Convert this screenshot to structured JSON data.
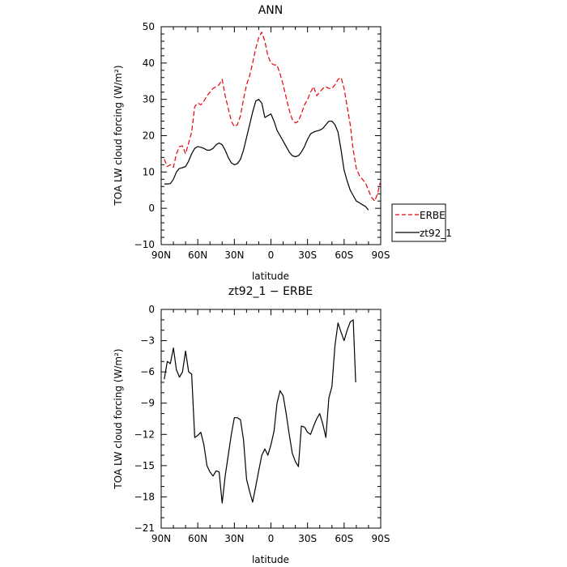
{
  "chart_data": [
    {
      "type": "line",
      "title": "ANN",
      "xlabel": "latitude",
      "ylabel": "TOA LW cloud forcing (W/m²)",
      "ylim": [
        -10,
        50
      ],
      "xlim": [
        90,
        -90
      ],
      "y_ticks": [
        -10,
        0,
        10,
        20,
        30,
        40,
        50
      ],
      "x_ticks": [
        90,
        60,
        30,
        0,
        -30,
        -60,
        -90
      ],
      "x_tick_labels": [
        "90N",
        "60N",
        "30N",
        "0",
        "30S",
        "60S",
        "90S"
      ],
      "legend_position": "right",
      "series": [
        {
          "name": "ERBE",
          "color": "#e8000b",
          "dash": "dashed",
          "points": [
            [
              87.5,
              13.5
            ],
            [
              85,
              11.5
            ],
            [
              82.5,
              12.0
            ],
            [
              80,
              11.3
            ],
            [
              77.5,
              15.0
            ],
            [
              75,
              17.0
            ],
            [
              72.5,
              17.2
            ],
            [
              70,
              15.0
            ],
            [
              67.5,
              18.0
            ],
            [
              65,
              21.0
            ],
            [
              62.5,
              28.0
            ],
            [
              60,
              29.0
            ],
            [
              57.5,
              28.5
            ],
            [
              55,
              29.5
            ],
            [
              52.5,
              31.0
            ],
            [
              50,
              32.0
            ],
            [
              47.5,
              33.0
            ],
            [
              45,
              33.5
            ],
            [
              42.5,
              34.0
            ],
            [
              40,
              35.5
            ],
            [
              37.5,
              31.0
            ],
            [
              35,
              27.5
            ],
            [
              32.5,
              24.0
            ],
            [
              30,
              22.5
            ],
            [
              27.5,
              23.0
            ],
            [
              25,
              25.5
            ],
            [
              22.5,
              30.0
            ],
            [
              20,
              34.0
            ],
            [
              17.5,
              36.5
            ],
            [
              15,
              40.0
            ],
            [
              12.5,
              44.0
            ],
            [
              10,
              47.0
            ],
            [
              7.5,
              48.5
            ],
            [
              5,
              46.0
            ],
            [
              2.5,
              42.0
            ],
            [
              0,
              40.0
            ],
            [
              -2.5,
              39.5
            ],
            [
              -5,
              39.5
            ],
            [
              -7.5,
              37.0
            ],
            [
              -10,
              34.0
            ],
            [
              -12.5,
              30.5
            ],
            [
              -15,
              27.0
            ],
            [
              -17.5,
              24.5
            ],
            [
              -20,
              23.5
            ],
            [
              -22.5,
              24.0
            ],
            [
              -25,
              26.0
            ],
            [
              -27.5,
              28.5
            ],
            [
              -30,
              30.0
            ],
            [
              -32.5,
              32.0
            ],
            [
              -35,
              33.5
            ],
            [
              -37.5,
              31.0
            ],
            [
              -40,
              32.0
            ],
            [
              -42.5,
              33.0
            ],
            [
              -45,
              33.5
            ],
            [
              -47.5,
              33.0
            ],
            [
              -50,
              33.0
            ],
            [
              -52.5,
              34.0
            ],
            [
              -55,
              35.5
            ],
            [
              -57.5,
              36.0
            ],
            [
              -60,
              33.0
            ],
            [
              -62.5,
              28.0
            ],
            [
              -65,
              23.0
            ],
            [
              -67.5,
              16.0
            ],
            [
              -70,
              11.0
            ],
            [
              -72.5,
              9.0
            ],
            [
              -75,
              8.0
            ],
            [
              -77.5,
              7.0
            ],
            [
              -80,
              5.0
            ],
            [
              -82.5,
              3.0
            ],
            [
              -85,
              2.0
            ],
            [
              -87.5,
              4.0
            ],
            [
              -89.5,
              7.0
            ]
          ]
        },
        {
          "name": "zt92_1",
          "color": "#000000",
          "dash": "solid",
          "points": [
            [
              87.5,
              6.7
            ],
            [
              85,
              6.7
            ],
            [
              82.5,
              6.8
            ],
            [
              80,
              8.0
            ],
            [
              77.5,
              10.0
            ],
            [
              75,
              11.0
            ],
            [
              72.5,
              11.2
            ],
            [
              70,
              11.5
            ],
            [
              67.5,
              13.0
            ],
            [
              65,
              15.0
            ],
            [
              62.5,
              16.5
            ],
            [
              60,
              17.0
            ],
            [
              57.5,
              16.8
            ],
            [
              55,
              16.5
            ],
            [
              52.5,
              16.0
            ],
            [
              50,
              16.0
            ],
            [
              47.5,
              16.5
            ],
            [
              45,
              17.5
            ],
            [
              42.5,
              18.0
            ],
            [
              40,
              17.5
            ],
            [
              37.5,
              16.0
            ],
            [
              35,
              14.0
            ],
            [
              32.5,
              12.5
            ],
            [
              30,
              12.0
            ],
            [
              27.5,
              12.3
            ],
            [
              25,
              13.5
            ],
            [
              22.5,
              16.0
            ],
            [
              20,
              19.5
            ],
            [
              17.5,
              23.0
            ],
            [
              15,
              26.5
            ],
            [
              12.5,
              29.5
            ],
            [
              10,
              30.0
            ],
            [
              7.5,
              29.0
            ],
            [
              5,
              25.0
            ],
            [
              2.5,
              25.5
            ],
            [
              0,
              26.0
            ],
            [
              -2.5,
              24.0
            ],
            [
              -5,
              21.5
            ],
            [
              -7.5,
              20.0
            ],
            [
              -10,
              18.5
            ],
            [
              -12.5,
              17.0
            ],
            [
              -15,
              15.5
            ],
            [
              -17.5,
              14.5
            ],
            [
              -20,
              14.2
            ],
            [
              -22.5,
              14.5
            ],
            [
              -25,
              15.5
            ],
            [
              -27.5,
              17.0
            ],
            [
              -30,
              19.0
            ],
            [
              -32.5,
              20.5
            ],
            [
              -35,
              21.0
            ],
            [
              -37.5,
              21.3
            ],
            [
              -40,
              21.5
            ],
            [
              -42.5,
              22.0
            ],
            [
              -45,
              23.0
            ],
            [
              -47.5,
              24.0
            ],
            [
              -50,
              24.0
            ],
            [
              -52.5,
              23.0
            ],
            [
              -55,
              21.0
            ],
            [
              -57.5,
              16.0
            ],
            [
              -60,
              10.5
            ],
            [
              -62.5,
              7.5
            ],
            [
              -65,
              5.0
            ],
            [
              -67.5,
              3.5
            ],
            [
              -70,
              2.0
            ],
            [
              -72.5,
              1.5
            ],
            [
              -75,
              1.0
            ],
            [
              -77.5,
              0.5
            ],
            [
              -80,
              -0.5
            ]
          ]
        }
      ]
    },
    {
      "type": "line",
      "title": "zt92_1 − ERBE",
      "xlabel": "latitude",
      "ylabel": "TOA LW cloud forcing (W/m²)",
      "ylim": [
        -21,
        0
      ],
      "xlim": [
        90,
        -90
      ],
      "y_ticks": [
        -21,
        -18,
        -15,
        -12,
        -9,
        -6,
        -3,
        0
      ],
      "x_ticks": [
        90,
        60,
        30,
        0,
        -30,
        -60,
        -90
      ],
      "x_tick_labels": [
        "90N",
        "60N",
        "30N",
        "0",
        "30S",
        "60S",
        "90S"
      ],
      "series": [
        {
          "name": "",
          "color": "#000000",
          "dash": "solid",
          "points": [
            [
              87.5,
              -6.7
            ],
            [
              85,
              -5.0
            ],
            [
              82.5,
              -5.2
            ],
            [
              80,
              -3.7
            ],
            [
              77.5,
              -5.8
            ],
            [
              75,
              -6.5
            ],
            [
              72.5,
              -6.0
            ],
            [
              70,
              -4.0
            ],
            [
              67.5,
              -6.0
            ],
            [
              65,
              -6.2
            ],
            [
              62.5,
              -12.3
            ],
            [
              60,
              -12.1
            ],
            [
              57.5,
              -11.8
            ],
            [
              55,
              -13.0
            ],
            [
              52.5,
              -15.0
            ],
            [
              50,
              -15.6
            ],
            [
              47.5,
              -16.0
            ],
            [
              45,
              -15.5
            ],
            [
              42.5,
              -15.6
            ],
            [
              40,
              -18.6
            ],
            [
              37.5,
              -16.0
            ],
            [
              35,
              -14.0
            ],
            [
              32.5,
              -12.0
            ],
            [
              30,
              -10.4
            ],
            [
              27.5,
              -10.4
            ],
            [
              25,
              -10.6
            ],
            [
              22.5,
              -12.5
            ],
            [
              20,
              -16.3
            ],
            [
              17.5,
              -17.5
            ],
            [
              15,
              -18.5
            ],
            [
              12.5,
              -17.0
            ],
            [
              10,
              -15.5
            ],
            [
              7.5,
              -14.0
            ],
            [
              5,
              -13.4
            ],
            [
              2.5,
              -14.0
            ],
            [
              0,
              -13.0
            ],
            [
              -2.5,
              -11.7
            ],
            [
              -5,
              -9.0
            ],
            [
              -7.5,
              -7.8
            ],
            [
              -10,
              -8.3
            ],
            [
              -12.5,
              -10.0
            ],
            [
              -15,
              -12.0
            ],
            [
              -17.5,
              -13.8
            ],
            [
              -20,
              -14.6
            ],
            [
              -22.5,
              -15.1
            ],
            [
              -25,
              -11.2
            ],
            [
              -27.5,
              -11.3
            ],
            [
              -30,
              -11.8
            ],
            [
              -32.5,
              -12.0
            ],
            [
              -35,
              -11.2
            ],
            [
              -37.5,
              -10.5
            ],
            [
              -40,
              -10.0
            ],
            [
              -42.5,
              -11.0
            ],
            [
              -45,
              -12.3
            ],
            [
              -47.5,
              -8.5
            ],
            [
              -50,
              -7.4
            ],
            [
              -52.5,
              -3.5
            ],
            [
              -55,
              -1.3
            ],
            [
              -57.5,
              -2.2
            ],
            [
              -60,
              -3.0
            ],
            [
              -62.5,
              -2.0
            ],
            [
              -65,
              -1.2
            ],
            [
              -67.5,
              -1.0
            ],
            [
              -69.5,
              -7.0
            ]
          ]
        }
      ]
    }
  ]
}
